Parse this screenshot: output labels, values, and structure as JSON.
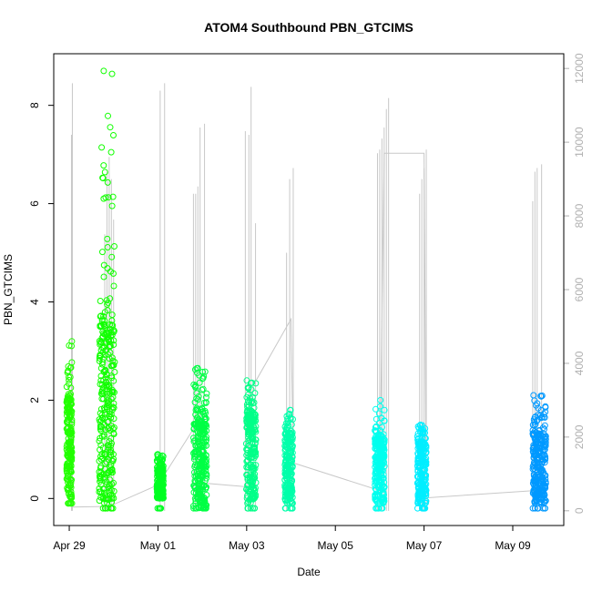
{
  "chart_data": {
    "type": "scatter",
    "title": "ATOM4 Southbound PBN_GTCIMS",
    "xlabel": "Date",
    "ylabel": "PBN_GTCIMS",
    "x_ticks": [
      "Apr 29",
      "May 01",
      "May 03",
      "May 05",
      "May 07",
      "May 09"
    ],
    "x_tick_days": [
      0,
      2,
      4,
      6,
      8,
      10
    ],
    "xlim_days": [
      -0.35,
      11.15
    ],
    "ylim": [
      -0.55,
      9.05
    ],
    "y_ticks": [
      0,
      2,
      4,
      6,
      8
    ],
    "y2_ticks": [
      0,
      2000,
      4000,
      6000,
      8000,
      10000,
      12000
    ],
    "y2lim": [
      -400,
      12400
    ],
    "scatter_clusters": [
      {
        "day": 0.0,
        "width": 0.12,
        "color": "#22ff00",
        "core": [
          0.0,
          2.0
        ],
        "max": 3.2,
        "min": -0.1
      },
      {
        "day": 0.85,
        "width": 0.35,
        "color": "#11ff00",
        "core": [
          -0.1,
          3.5
        ],
        "max": 8.7,
        "min": -0.2
      },
      {
        "day": 2.05,
        "width": 0.15,
        "color": "#00ff22",
        "core": [
          0.0,
          0.6
        ],
        "max": 0.9,
        "min": -0.2
      },
      {
        "day": 2.95,
        "width": 0.3,
        "color": "#00ff44",
        "core": [
          -0.2,
          1.5
        ],
        "max": 2.65,
        "min": -0.2
      },
      {
        "day": 4.1,
        "width": 0.22,
        "color": "#00ff88",
        "core": [
          -0.1,
          1.7
        ],
        "max": 2.4,
        "min": -0.2
      },
      {
        "day": 4.95,
        "width": 0.18,
        "color": "#00ffaa",
        "core": [
          -0.1,
          1.3
        ],
        "max": 1.8,
        "min": -0.2
      },
      {
        "day": 7.0,
        "width": 0.22,
        "color": "#00ffee",
        "core": [
          -0.1,
          1.2
        ],
        "max": 2.0,
        "min": -0.2
      },
      {
        "day": 7.95,
        "width": 0.2,
        "color": "#00eeff",
        "core": [
          -0.1,
          1.1
        ],
        "max": 1.5,
        "min": -0.2
      },
      {
        "day": 10.6,
        "width": 0.3,
        "color": "#0099ff",
        "core": [
          -0.1,
          1.3
        ],
        "max": 2.1,
        "min": -0.2
      }
    ],
    "line_spikes": [
      {
        "days": [
          0.05,
          0.07
        ],
        "values": [
          10200,
          11600
        ]
      },
      {
        "days": [
          0.8,
          0.85,
          0.9,
          0.95,
          1.0
        ],
        "values": [
          7500,
          9200,
          9600,
          9000,
          7900
        ]
      },
      {
        "days": [
          2.05,
          2.15
        ],
        "values": [
          11400,
          11600
        ]
      },
      {
        "days": [
          2.8,
          2.85,
          2.9,
          2.95,
          3.05
        ],
        "values": [
          8600,
          8600,
          8800,
          10400,
          10500
        ]
      },
      {
        "days": [
          3.97,
          4.05,
          4.1,
          4.2
        ],
        "values": [
          10300,
          10200,
          11500,
          7800
        ]
      },
      {
        "days": [
          4.9,
          4.97,
          5.05
        ],
        "values": [
          7000,
          9000,
          9300
        ]
      },
      {
        "days": [
          6.95,
          7.0,
          7.05,
          7.1,
          7.15,
          7.2
        ],
        "values": [
          9700,
          9800,
          10100,
          10400,
          10900,
          11200
        ]
      },
      {
        "days": [
          7.9,
          7.95,
          8.0,
          8.05
        ],
        "values": [
          8600,
          9000,
          9300,
          9800
        ]
      },
      {
        "days": [
          10.45,
          10.5,
          10.55,
          10.65
        ],
        "values": [
          8400,
          9200,
          9300,
          9400
        ]
      }
    ],
    "line_path": [
      {
        "day": 0.05,
        "value": 100
      },
      {
        "day": 0.9,
        "value": 120
      },
      {
        "day": 2.0,
        "value": 700
      },
      {
        "day": 3.0,
        "value": 2600
      },
      {
        "day": 3.05,
        "value": 750
      },
      {
        "day": 4.0,
        "value": 650
      },
      {
        "day": 4.15,
        "value": 3400
      },
      {
        "day": 5.0,
        "value": 5200
      },
      {
        "day": 5.05,
        "value": 1300
      },
      {
        "day": 7.0,
        "value": 550
      },
      {
        "day": 7.1,
        "value": 9700
      },
      {
        "day": 8.0,
        "value": 9700
      },
      {
        "day": 8.05,
        "value": 350
      },
      {
        "day": 10.5,
        "value": 550
      }
    ]
  }
}
